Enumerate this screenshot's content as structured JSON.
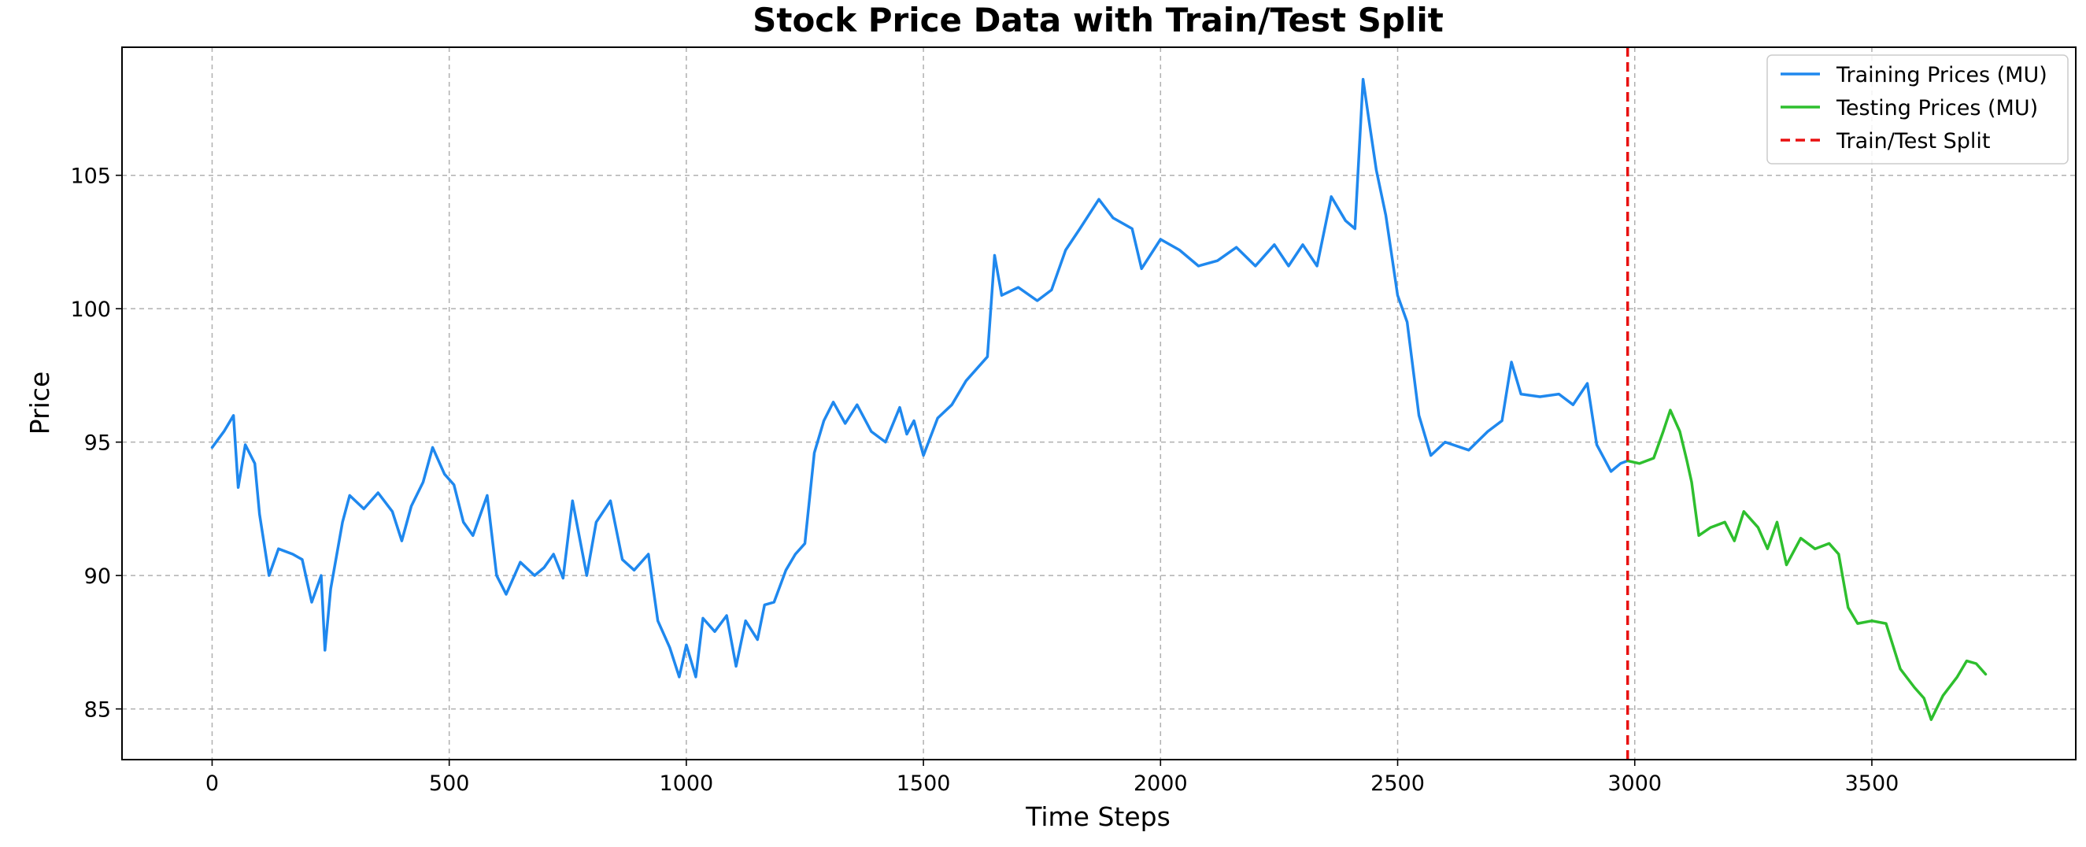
{
  "chart_data": {
    "type": "line",
    "title": "Stock Price Data with Train/Test Split",
    "xlabel": "Time Steps",
    "ylabel": "Price",
    "xlim": [
      -190,
      3930
    ],
    "ylim": [
      83.1,
      109.8
    ],
    "xticks": [
      0,
      500,
      1000,
      1500,
      2000,
      2500,
      3000,
      3500
    ],
    "yticks": [
      85,
      90,
      95,
      100,
      105
    ],
    "grid": true,
    "legend_position": "top-right",
    "split_x": 2985,
    "series": [
      {
        "name": "Training Prices (MU)",
        "color": "#1f88ee",
        "points": [
          [
            0,
            94.8
          ],
          [
            25,
            95.4
          ],
          [
            45,
            96.0
          ],
          [
            55,
            93.3
          ],
          [
            70,
            94.9
          ],
          [
            90,
            94.2
          ],
          [
            100,
            92.3
          ],
          [
            120,
            90.0
          ],
          [
            140,
            91.0
          ],
          [
            170,
            90.8
          ],
          [
            190,
            90.6
          ],
          [
            210,
            89.0
          ],
          [
            230,
            90.0
          ],
          [
            238,
            87.2
          ],
          [
            250,
            89.5
          ],
          [
            275,
            92.0
          ],
          [
            290,
            93.0
          ],
          [
            320,
            92.5
          ],
          [
            350,
            93.1
          ],
          [
            380,
            92.4
          ],
          [
            400,
            91.3
          ],
          [
            420,
            92.6
          ],
          [
            445,
            93.5
          ],
          [
            465,
            94.8
          ],
          [
            490,
            93.8
          ],
          [
            510,
            93.4
          ],
          [
            530,
            92.0
          ],
          [
            550,
            91.5
          ],
          [
            580,
            93.0
          ],
          [
            600,
            90.0
          ],
          [
            620,
            89.3
          ],
          [
            650,
            90.5
          ],
          [
            680,
            90.0
          ],
          [
            700,
            90.3
          ],
          [
            720,
            90.8
          ],
          [
            740,
            89.9
          ],
          [
            760,
            92.8
          ],
          [
            790,
            90.0
          ],
          [
            810,
            92.0
          ],
          [
            840,
            92.8
          ],
          [
            865,
            90.6
          ],
          [
            890,
            90.2
          ],
          [
            920,
            90.8
          ],
          [
            940,
            88.3
          ],
          [
            965,
            87.3
          ],
          [
            985,
            86.2
          ],
          [
            1000,
            87.4
          ],
          [
            1020,
            86.2
          ],
          [
            1035,
            88.4
          ],
          [
            1060,
            87.9
          ],
          [
            1085,
            88.5
          ],
          [
            1105,
            86.6
          ],
          [
            1125,
            88.3
          ],
          [
            1150,
            87.6
          ],
          [
            1165,
            88.9
          ],
          [
            1185,
            89.0
          ],
          [
            1210,
            90.2
          ],
          [
            1230,
            90.8
          ],
          [
            1250,
            91.2
          ],
          [
            1270,
            94.6
          ],
          [
            1290,
            95.8
          ],
          [
            1310,
            96.5
          ],
          [
            1335,
            95.7
          ],
          [
            1360,
            96.4
          ],
          [
            1390,
            95.4
          ],
          [
            1420,
            95.0
          ],
          [
            1450,
            96.3
          ],
          [
            1465,
            95.3
          ],
          [
            1480,
            95.8
          ],
          [
            1500,
            94.5
          ],
          [
            1530,
            95.9
          ],
          [
            1560,
            96.4
          ],
          [
            1590,
            97.3
          ],
          [
            1615,
            97.8
          ],
          [
            1635,
            98.2
          ],
          [
            1650,
            102.0
          ],
          [
            1665,
            100.5
          ],
          [
            1700,
            100.8
          ],
          [
            1740,
            100.3
          ],
          [
            1770,
            100.7
          ],
          [
            1800,
            102.2
          ],
          [
            1830,
            103.0
          ],
          [
            1870,
            104.1
          ],
          [
            1900,
            103.4
          ],
          [
            1940,
            103.0
          ],
          [
            1960,
            101.5
          ],
          [
            2000,
            102.6
          ],
          [
            2040,
            102.2
          ],
          [
            2080,
            101.6
          ],
          [
            2120,
            101.8
          ],
          [
            2160,
            102.3
          ],
          [
            2200,
            101.6
          ],
          [
            2240,
            102.4
          ],
          [
            2270,
            101.6
          ],
          [
            2300,
            102.4
          ],
          [
            2330,
            101.6
          ],
          [
            2360,
            104.2
          ],
          [
            2390,
            103.3
          ],
          [
            2410,
            103.0
          ],
          [
            2427,
            108.6
          ],
          [
            2440,
            107.0
          ],
          [
            2455,
            105.2
          ],
          [
            2475,
            103.5
          ],
          [
            2500,
            100.5
          ],
          [
            2520,
            99.5
          ],
          [
            2545,
            96.0
          ],
          [
            2570,
            94.5
          ],
          [
            2600,
            95.0
          ],
          [
            2650,
            94.7
          ],
          [
            2690,
            95.4
          ],
          [
            2720,
            95.8
          ],
          [
            2740,
            98.0
          ],
          [
            2760,
            96.8
          ],
          [
            2800,
            96.7
          ],
          [
            2840,
            96.8
          ],
          [
            2870,
            96.4
          ],
          [
            2900,
            97.2
          ],
          [
            2920,
            94.9
          ],
          [
            2950,
            93.9
          ],
          [
            2970,
            94.2
          ],
          [
            2985,
            94.3
          ]
        ]
      },
      {
        "name": "Testing Prices (MU)",
        "color": "#2ebf2e",
        "points": [
          [
            2985,
            94.3
          ],
          [
            3010,
            94.2
          ],
          [
            3040,
            94.4
          ],
          [
            3060,
            95.4
          ],
          [
            3075,
            96.2
          ],
          [
            3095,
            95.4
          ],
          [
            3110,
            94.3
          ],
          [
            3120,
            93.5
          ],
          [
            3135,
            91.5
          ],
          [
            3160,
            91.8
          ],
          [
            3190,
            92.0
          ],
          [
            3210,
            91.3
          ],
          [
            3230,
            92.4
          ],
          [
            3260,
            91.8
          ],
          [
            3280,
            91.0
          ],
          [
            3300,
            92.0
          ],
          [
            3320,
            90.4
          ],
          [
            3350,
            91.4
          ],
          [
            3380,
            91.0
          ],
          [
            3410,
            91.2
          ],
          [
            3430,
            90.8
          ],
          [
            3450,
            88.8
          ],
          [
            3470,
            88.2
          ],
          [
            3500,
            88.3
          ],
          [
            3530,
            88.2
          ],
          [
            3560,
            86.5
          ],
          [
            3590,
            85.8
          ],
          [
            3610,
            85.4
          ],
          [
            3625,
            84.6
          ],
          [
            3650,
            85.5
          ],
          [
            3680,
            86.2
          ],
          [
            3700,
            86.8
          ],
          [
            3720,
            86.7
          ],
          [
            3740,
            86.3
          ]
        ]
      }
    ],
    "legend": [
      {
        "label": "Training Prices (MU)",
        "color": "#1f88ee",
        "style": "solid"
      },
      {
        "label": "Testing Prices (MU)",
        "color": "#2ebf2e",
        "style": "solid"
      },
      {
        "label": "Train/Test Split",
        "color": "#e81010",
        "style": "dashed"
      }
    ]
  }
}
